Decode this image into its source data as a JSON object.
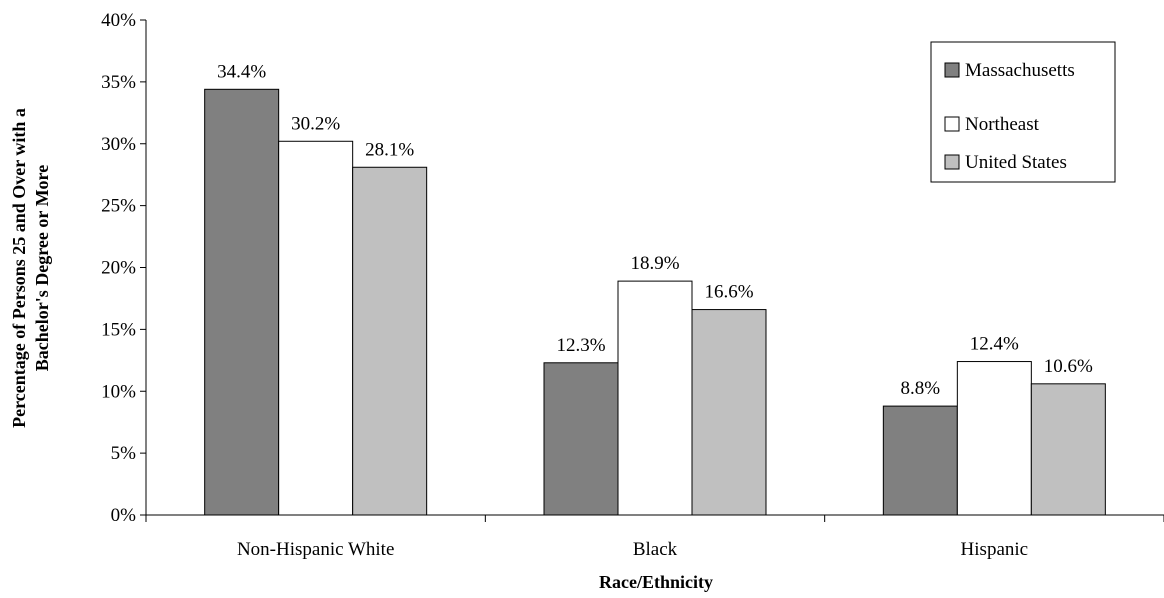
{
  "chart_data": {
    "type": "bar",
    "title": "",
    "xlabel": "Race/Ethnicity",
    "ylabel_lines": [
      "Percentage of Persons 25 and Over with a",
      "Bachelor's Degree or More"
    ],
    "categories": [
      "Non-Hispanic White",
      "Black",
      "Hispanic"
    ],
    "ylim": [
      0,
      40
    ],
    "yticks": [
      0,
      5,
      10,
      15,
      20,
      25,
      30,
      35,
      40
    ],
    "ytick_labels": [
      "0%",
      "5%",
      "10%",
      "15%",
      "20%",
      "25%",
      "30%",
      "35%",
      "40%"
    ],
    "series": [
      {
        "name": "Massachusetts",
        "color": "#808080",
        "values": [
          34.4,
          12.3,
          8.8
        ],
        "labels": [
          "34.4%",
          "12.3%",
          "8.8%"
        ]
      },
      {
        "name": "Northeast",
        "color": "#ffffff",
        "values": [
          30.2,
          18.9,
          12.4
        ],
        "labels": [
          "30.2%",
          "18.9%",
          "12.4%"
        ]
      },
      {
        "name": "United States",
        "color": "#c0c0c0",
        "values": [
          28.1,
          16.6,
          10.6
        ],
        "labels": [
          "28.1%",
          "16.6%",
          "10.6%"
        ]
      }
    ],
    "grid": false,
    "legend_position": "top-right"
  }
}
